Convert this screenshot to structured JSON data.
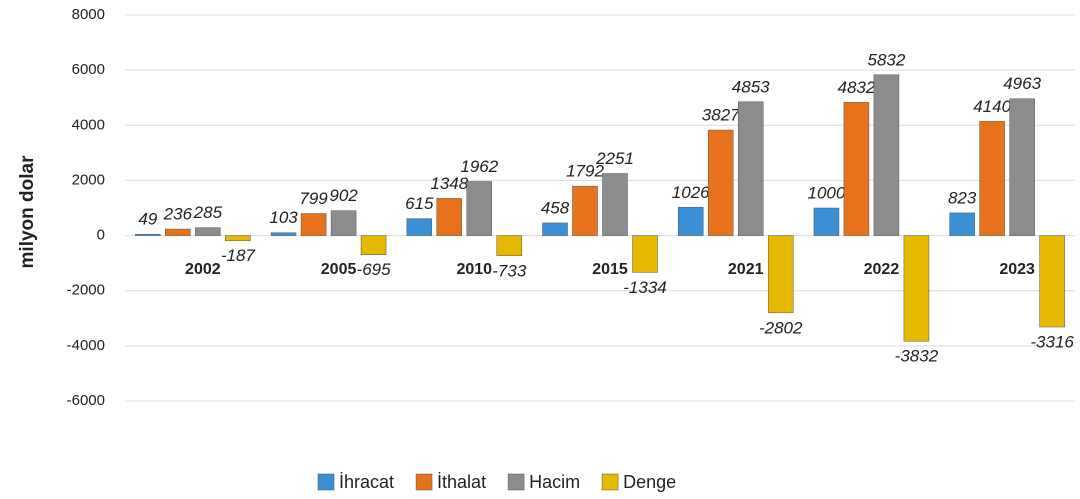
{
  "chart_data": {
    "type": "bar",
    "y_axis_label": "milyon dolar",
    "categories": [
      "2002",
      "2005",
      "2010",
      "2015",
      "2021",
      "2022",
      "2023"
    ],
    "series": [
      {
        "name": "İhracat",
        "color": "#3b8fd6",
        "values": [
          49,
          103,
          615,
          458,
          1026,
          1000,
          823
        ]
      },
      {
        "name": "İthalat",
        "color": "#e8711c",
        "values": [
          236,
          799,
          1348,
          1792,
          3827,
          4832,
          4140
        ]
      },
      {
        "name": "Hacim",
        "color": "#8c8c8c",
        "values": [
          285,
          902,
          1962,
          2251,
          4853,
          5832,
          4963
        ]
      },
      {
        "name": "Denge",
        "color": "#e6b800",
        "values": [
          -187,
          -695,
          -733,
          -1334,
          -2802,
          -3832,
          -3316
        ]
      }
    ],
    "ylim": [
      -6000,
      8000
    ],
    "yticks": [
      -6000,
      -4000,
      -2000,
      0,
      2000,
      4000,
      6000,
      8000
    ],
    "grid": true,
    "legend": "bottom"
  }
}
